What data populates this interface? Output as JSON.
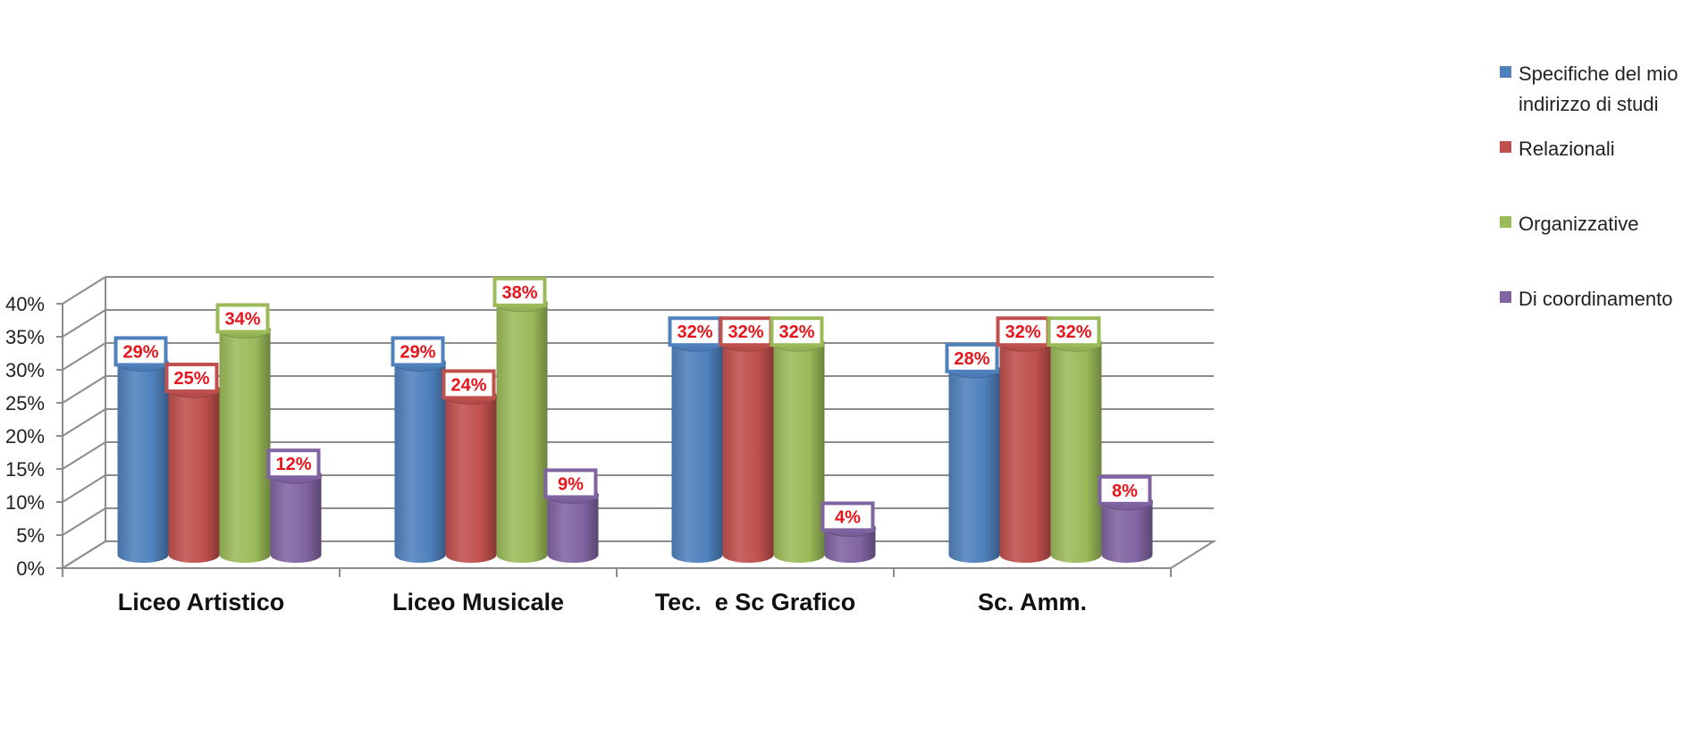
{
  "chart_data": {
    "type": "bar",
    "categories": [
      "Liceo Artistico",
      "Liceo Musicale",
      "Tec.  e Sc Grafico",
      "Sc. Amm."
    ],
    "series": [
      {
        "name": "Specifiche del mio indirizzo di studi",
        "legend_lines": [
          "Specifiche del mio",
          "indirizzo di studi"
        ],
        "color": "#4f81bd",
        "values": [
          29,
          29,
          32,
          28
        ],
        "labels": [
          "29%",
          "29%",
          "32%",
          "28%"
        ]
      },
      {
        "name": "Relazionali",
        "legend_lines": [
          "Relazionali"
        ],
        "color": "#c0504d",
        "values": [
          25,
          24,
          32,
          32
        ],
        "labels": [
          "25%",
          "24%",
          "32%",
          "32%"
        ]
      },
      {
        "name": "Organizzative",
        "legend_lines": [
          "Organizzative"
        ],
        "color": "#9bbb59",
        "values": [
          34,
          38,
          32,
          32
        ],
        "labels": [
          "34%",
          "38%",
          "32%",
          "32%"
        ]
      },
      {
        "name": "Di coordinamento",
        "legend_lines": [
          "Di coordinamento"
        ],
        "color": "#8064a2",
        "values": [
          12,
          9,
          4,
          8
        ],
        "labels": [
          "12%",
          "9%",
          "4%",
          "8%"
        ]
      }
    ],
    "yticks": [
      "0%",
      "5%",
      "10%",
      "15%",
      "20%",
      "25%",
      "30%",
      "35%",
      "40%"
    ],
    "ylim": [
      0,
      40
    ],
    "xlabel": "",
    "ylabel": "",
    "title": "",
    "grid": true,
    "legend_position": "right",
    "style": "3d-cylinder"
  }
}
